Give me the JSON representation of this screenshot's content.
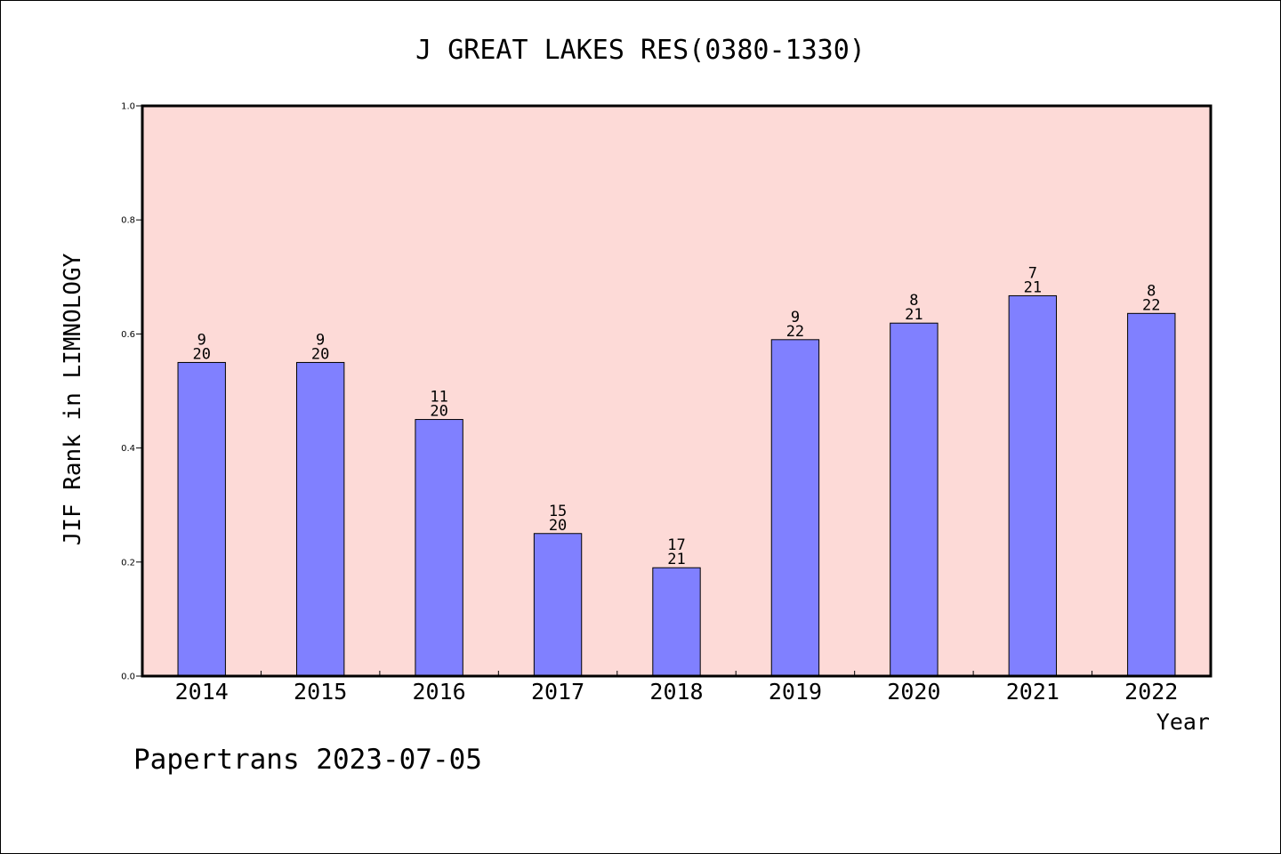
{
  "chart_data": {
    "type": "bar",
    "title": "J GREAT LAKES RES(0380-1330)",
    "xlabel": "Year",
    "ylabel": "JIF Rank in LIMNOLOGY",
    "categories": [
      "2014",
      "2015",
      "2016",
      "2017",
      "2018",
      "2019",
      "2020",
      "2021",
      "2022"
    ],
    "values": [
      0.55,
      0.55,
      0.45,
      0.25,
      0.19,
      0.59,
      0.619,
      0.667,
      0.636
    ],
    "rank": [
      "9",
      "9",
      "11",
      "15",
      "17",
      "9",
      "8",
      "7",
      "8"
    ],
    "total": [
      "20",
      "20",
      "20",
      "20",
      "21",
      "22",
      "21",
      "21",
      "22"
    ],
    "ylim": [
      0,
      1.0
    ],
    "yticks": [
      "0.0",
      "0.2",
      "0.4",
      "0.6",
      "0.8",
      "1.0"
    ],
    "grid": false,
    "colors": {
      "plot_background": "#fddad7",
      "bar_fill": "#8080ff",
      "bar_stroke": "#000000"
    }
  },
  "footer": {
    "text": "Papertrans 2023-07-05"
  }
}
